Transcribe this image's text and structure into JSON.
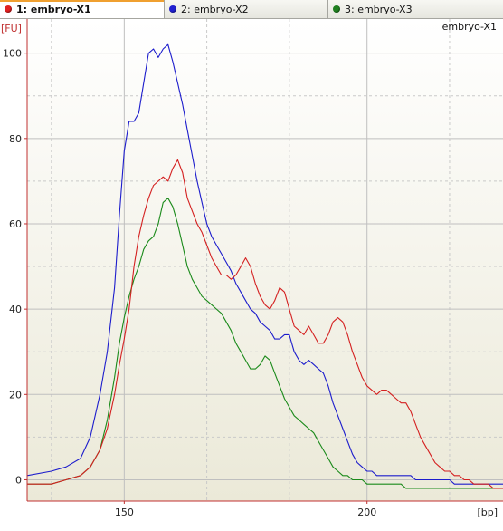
{
  "tabs": [
    {
      "label": "1: embryo-X1",
      "color": "#e02020",
      "active": true
    },
    {
      "label": "2: embryo-X2",
      "color": "#2020d0",
      "active": false
    },
    {
      "label": "3: embryo-X3",
      "color": "#208020",
      "active": false
    }
  ],
  "chart_data": {
    "type": "line",
    "corner_label": "embryo-X1",
    "x_unit": "[bp]",
    "y_unit": "[FU]",
    "xlim": [
      130,
      228
    ],
    "ylim": [
      -5,
      108
    ],
    "x_ticks": [
      150,
      200
    ],
    "y_ticks": [
      0,
      20,
      40,
      60,
      80,
      100
    ],
    "x_major_grid": [
      150,
      200
    ],
    "x_minor_grid": [
      135,
      167,
      184,
      217
    ],
    "y_major_grid": [
      0,
      20,
      40,
      60,
      80,
      100
    ],
    "y_minor_grid": [
      10,
      30,
      50,
      70,
      90
    ],
    "grid": true,
    "colors": {
      "axis": "#c03030",
      "grid_major": "#bfbfbf",
      "grid_minor": "#c9c9c9",
      "background_top": "#ffffff",
      "background_bottom": "#ebe9d8"
    },
    "series": [
      {
        "color": "#d42020",
        "x": [
          130,
          135,
          138,
          141,
          143,
          145,
          146.5,
          148,
          149,
          150,
          151,
          152,
          153,
          154,
          155,
          156,
          157,
          158,
          159,
          160,
          161,
          162,
          163,
          164,
          165,
          166,
          167,
          168,
          169,
          170,
          171,
          172,
          173,
          174,
          175,
          176,
          177,
          178,
          179,
          180,
          181,
          182,
          183,
          184,
          185,
          186,
          187,
          188,
          189,
          190,
          191,
          192,
          193,
          194,
          195,
          196,
          197,
          198,
          199,
          200,
          201,
          202,
          203,
          204,
          205,
          206,
          207,
          208,
          209,
          210,
          211,
          212,
          213,
          214,
          215,
          216,
          217,
          218,
          219,
          220,
          221,
          222,
          223,
          224,
          225,
          226,
          227,
          228
        ],
        "y": [
          -1,
          -1,
          0,
          1,
          3,
          7,
          12,
          20,
          27,
          33,
          40,
          50,
          57,
          62,
          66,
          69,
          70,
          71,
          70,
          73,
          75,
          72,
          66,
          63,
          60,
          58,
          55,
          52,
          50,
          48,
          48,
          47,
          48,
          50,
          52,
          50,
          46,
          43,
          41,
          40,
          42,
          45,
          44,
          40,
          36,
          35,
          34,
          36,
          34,
          32,
          32,
          34,
          37,
          38,
          37,
          34,
          30,
          27,
          24,
          22,
          21,
          20,
          21,
          21,
          20,
          19,
          18,
          18,
          16,
          13,
          10,
          8,
          6,
          4,
          3,
          2,
          2,
          1,
          1,
          0,
          0,
          -1,
          -1,
          -1,
          -1,
          -2,
          -2,
          -2
        ]
      },
      {
        "color": "#1c1ccc",
        "x": [
          130,
          135,
          138,
          141,
          143,
          145,
          146.5,
          148,
          149,
          150,
          151,
          152,
          153,
          154,
          155,
          156,
          157,
          158,
          159,
          160,
          161,
          162,
          163,
          164,
          165,
          166,
          167,
          168,
          169,
          170,
          171,
          172,
          173,
          174,
          175,
          176,
          177,
          178,
          179,
          180,
          181,
          182,
          183,
          184,
          185,
          186,
          187,
          188,
          189,
          190,
          191,
          192,
          193,
          194,
          195,
          196,
          197,
          198,
          199,
          200,
          201,
          202,
          203,
          204,
          205,
          206,
          207,
          208,
          209,
          210,
          211,
          212,
          213,
          214,
          215,
          216,
          217,
          218,
          219,
          220,
          221,
          222,
          223,
          224,
          225,
          226,
          227,
          228
        ],
        "y": [
          1,
          2,
          3,
          5,
          10,
          20,
          30,
          45,
          62,
          77,
          84,
          84,
          86,
          93,
          100,
          101,
          99,
          101,
          102,
          98,
          93,
          88,
          82,
          76,
          70,
          65,
          60,
          57,
          55,
          53,
          51,
          49,
          46,
          44,
          42,
          40,
          39,
          37,
          36,
          35,
          33,
          33,
          34,
          34,
          30,
          28,
          27,
          28,
          27,
          26,
          25,
          22,
          18,
          15,
          12,
          9,
          6,
          4,
          3,
          2,
          2,
          1,
          1,
          1,
          1,
          1,
          1,
          1,
          1,
          0,
          0,
          0,
          0,
          0,
          0,
          0,
          0,
          -1,
          -1,
          -1,
          -1,
          -1,
          -1,
          -1,
          -1,
          -1,
          -1,
          -1
        ]
      },
      {
        "color": "#1a8a1a",
        "x": [
          130,
          135,
          138,
          141,
          143,
          145,
          146.5,
          148,
          149,
          150,
          151,
          152,
          153,
          154,
          155,
          156,
          157,
          158,
          159,
          160,
          161,
          162,
          163,
          164,
          165,
          166,
          167,
          168,
          169,
          170,
          171,
          172,
          173,
          174,
          175,
          176,
          177,
          178,
          179,
          180,
          181,
          182,
          183,
          184,
          185,
          186,
          187,
          188,
          189,
          190,
          191,
          192,
          193,
          194,
          195,
          196,
          197,
          198,
          199,
          200,
          201,
          202,
          203,
          204,
          205,
          206,
          207,
          208,
          209,
          210,
          211,
          212,
          213,
          214,
          215,
          216,
          217,
          218,
          219,
          220,
          221,
          222,
          223,
          224,
          225,
          226,
          227,
          228
        ],
        "y": [
          -1,
          -1,
          0,
          1,
          3,
          7,
          14,
          24,
          32,
          38,
          43,
          47,
          50,
          54,
          56,
          57,
          60,
          65,
          66,
          64,
          60,
          55,
          50,
          47,
          45,
          43,
          42,
          41,
          40,
          39,
          37,
          35,
          32,
          30,
          28,
          26,
          26,
          27,
          29,
          28,
          25,
          22,
          19,
          17,
          15,
          14,
          13,
          12,
          11,
          9,
          7,
          5,
          3,
          2,
          1,
          1,
          0,
          0,
          0,
          -1,
          -1,
          -1,
          -1,
          -1,
          -1,
          -1,
          -1,
          -2,
          -2,
          -2,
          -2,
          -2,
          -2,
          -2,
          -2,
          -2,
          -2,
          -2,
          -2,
          -2,
          -2,
          -2,
          -2,
          -2,
          -2,
          -2,
          -2,
          -2
        ]
      }
    ]
  }
}
